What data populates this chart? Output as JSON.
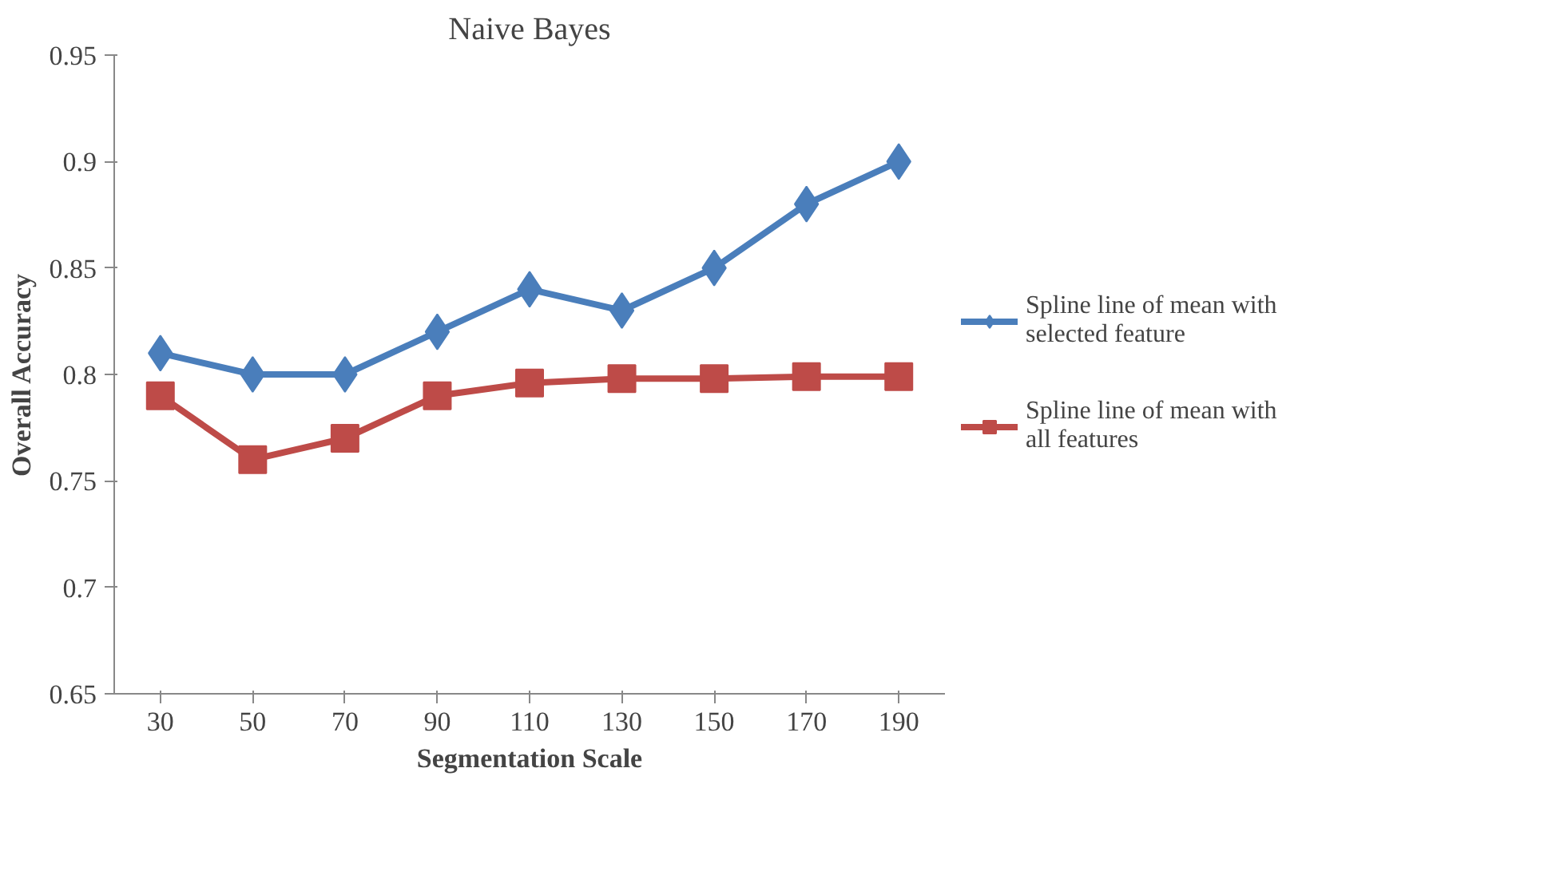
{
  "chart_data": {
    "type": "line",
    "title": "Naive Bayes",
    "xlabel": "Segmentation Scale",
    "ylabel": "Overall Accuracy",
    "categories": [
      "30",
      "50",
      "70",
      "90",
      "110",
      "130",
      "150",
      "170",
      "190"
    ],
    "series": [
      {
        "name": "Spline line of mean with selected feature",
        "color": "#4a7ebb",
        "marker": "diamond",
        "values": [
          0.81,
          0.8,
          0.8,
          0.82,
          0.84,
          0.83,
          0.85,
          0.88,
          0.9
        ]
      },
      {
        "name": "Spline line of mean with all features",
        "color": "#be4b48",
        "marker": "square",
        "values": [
          0.79,
          0.76,
          0.77,
          0.79,
          0.796,
          0.798,
          0.798,
          0.799,
          0.799
        ]
      }
    ],
    "ylim": [
      0.65,
      0.95
    ],
    "yticks": [
      0.65,
      0.7,
      0.75,
      0.8,
      0.85,
      0.9,
      0.95
    ],
    "grid": false,
    "legend": "right",
    "line_style": "solid"
  }
}
